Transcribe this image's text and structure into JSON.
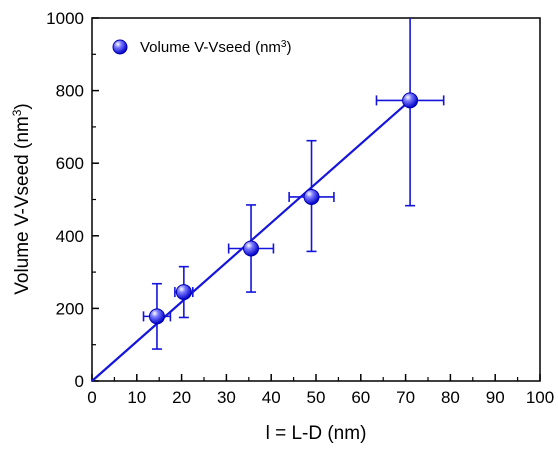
{
  "chart_data": {
    "type": "scatter",
    "xlabel": "l = L-D (nm)",
    "ylabel": {
      "main": "Volume V-Vseed (nm",
      "sup": "3",
      "tail": ")"
    },
    "xlim": [
      0,
      100
    ],
    "ylim": [
      0,
      1000
    ],
    "x_ticks": [
      0,
      10,
      20,
      30,
      40,
      50,
      60,
      70,
      80,
      90,
      100
    ],
    "y_ticks": [
      0,
      200,
      400,
      600,
      800,
      1000
    ],
    "grid": false,
    "legend": {
      "position": "top-left",
      "label": {
        "main": "Volume V-Vseed (nm",
        "sup": "3",
        "tail": ")"
      }
    },
    "series": [
      {
        "name": "Volume V-Vseed (nm3)",
        "color": "#1414dc",
        "points": [
          {
            "x": 14.5,
            "y": 178,
            "x_err": 3.0,
            "y_err_low": 90,
            "y_err_high": 90
          },
          {
            "x": 20.5,
            "y": 245,
            "x_err": 2.0,
            "y_err_low": 70,
            "y_err_high": 70
          },
          {
            "x": 35.5,
            "y": 365,
            "x_err": 5.0,
            "y_err_low": 120,
            "y_err_high": 120
          },
          {
            "x": 49.0,
            "y": 507,
            "x_err": 5.0,
            "y_err_low": 150,
            "y_err_high": 155
          },
          {
            "x": 71.0,
            "y": 773,
            "x_err": 7.5,
            "y_err_low": 290,
            "y_err_high": 290
          }
        ]
      }
    ],
    "fit_line": {
      "color": "#1414dc",
      "from": [
        0,
        0
      ],
      "to": [
        71,
        773
      ]
    }
  }
}
